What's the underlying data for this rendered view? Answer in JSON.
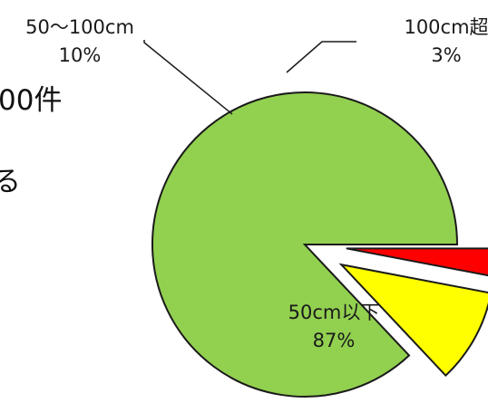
{
  "background_text": {
    "line1": "00件",
    "line2": "る"
  },
  "chart_data": {
    "type": "pie",
    "title": "",
    "slices": [
      {
        "label": "50cm以下",
        "value": 87,
        "display": "87%",
        "color": "#92d050",
        "exploded": false
      },
      {
        "label": "50～100cm",
        "value": 10,
        "display": "10%",
        "color": "#ffff00",
        "exploded": true
      },
      {
        "label": "100cm超",
        "value": 3,
        "display": "3%",
        "color": "#ff0000",
        "exploded": true
      }
    ],
    "start_angle_deg": 0,
    "direction": "counterclockwise",
    "outline_color": "#1a1a1a",
    "legend": "none"
  }
}
